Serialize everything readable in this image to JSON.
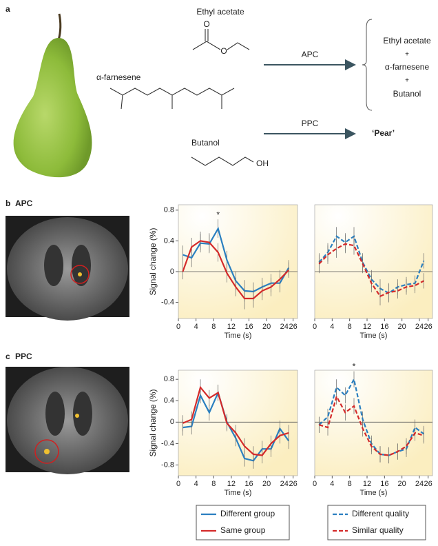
{
  "panel_a": {
    "label": "a",
    "molecules": [
      {
        "name": "Ethyl acetate",
        "atoms": [
          "O",
          "O"
        ]
      },
      {
        "name": "α-farnesene"
      },
      {
        "name": "Butanol",
        "atoms": [
          "OH"
        ]
      }
    ],
    "arrows": [
      "APC",
      "PPC"
    ],
    "mixture": [
      "Ethyl acetate",
      "+",
      "α-farnesene",
      "+",
      "Butanol"
    ],
    "percept": "‘Pear’"
  },
  "panel_b": {
    "label": "b",
    "region": "APC"
  },
  "panel_c": {
    "label": "c",
    "region": "PPC"
  },
  "chart_data": [
    {
      "type": "line",
      "xlabel": "Time (s)",
      "ylabel": "Signal change (%)",
      "xlim": [
        0,
        27
      ],
      "xticks": [
        0,
        4,
        8,
        12,
        16,
        20,
        24,
        26
      ],
      "ylim": [
        -0.61,
        0.87
      ],
      "yticks": [
        -0.4,
        0,
        0.4,
        0.8
      ],
      "x": [
        1,
        3,
        5,
        7,
        9,
        11,
        13,
        15,
        17,
        19,
        21,
        23,
        25
      ],
      "series": [
        {
          "color": "#2a7fc0",
          "line_style": "solid",
          "values": [
            0.22,
            0.18,
            0.37,
            0.36,
            0.56,
            0.15,
            -0.12,
            -0.25,
            -0.26,
            -0.2,
            -0.15,
            -0.15,
            0.05
          ],
          "errors": [
            0.12,
            0.12,
            0.12,
            0.12,
            0.12,
            0.12,
            0.12,
            0.14,
            0.12,
            0.12,
            0.12,
            0.12,
            0.1
          ]
        },
        {
          "color": "#d42a2a",
          "line_style": "solid",
          "values": [
            0.0,
            0.32,
            0.4,
            0.38,
            0.25,
            -0.02,
            -0.2,
            -0.35,
            -0.35,
            -0.25,
            -0.2,
            -0.1,
            0.02
          ],
          "errors": [
            0.1,
            0.12,
            0.12,
            0.12,
            0.12,
            0.12,
            0.12,
            0.14,
            0.12,
            0.12,
            0.12,
            0.12,
            0.1
          ]
        }
      ],
      "annotation": {
        "text": "*",
        "x": 9
      }
    },
    {
      "type": "line",
      "xlabel": "Time (s)",
      "xlim": [
        0,
        27
      ],
      "xticks": [
        0,
        4,
        8,
        12,
        16,
        20,
        24,
        26
      ],
      "ylim": [
        -0.61,
        0.87
      ],
      "x": [
        1,
        3,
        5,
        7,
        9,
        11,
        13,
        15,
        17,
        19,
        21,
        23,
        25
      ],
      "series": [
        {
          "color": "#2a7fc0",
          "line_style": "dashed",
          "values": [
            0.12,
            0.25,
            0.46,
            0.38,
            0.46,
            0.12,
            -0.1,
            -0.22,
            -0.28,
            -0.2,
            -0.17,
            -0.15,
            0.14
          ],
          "errors": [
            0.12,
            0.12,
            0.12,
            0.12,
            0.12,
            0.12,
            0.12,
            0.12,
            0.12,
            0.1,
            0.1,
            0.1,
            0.1
          ]
        },
        {
          "color": "#d42a2a",
          "line_style": "dashed",
          "values": [
            0.1,
            0.22,
            0.3,
            0.36,
            0.34,
            0.1,
            -0.15,
            -0.32,
            -0.27,
            -0.25,
            -0.2,
            -0.18,
            -0.12
          ],
          "errors": [
            0.12,
            0.12,
            0.12,
            0.12,
            0.12,
            0.12,
            0.12,
            0.12,
            0.12,
            0.1,
            0.1,
            0.1,
            0.1
          ]
        }
      ]
    },
    {
      "type": "line",
      "xlabel": "Time (s)",
      "ylabel": "Signal change (%)",
      "xlim": [
        0,
        27
      ],
      "xticks": [
        0,
        4,
        8,
        12,
        16,
        20,
        24,
        26
      ],
      "ylim": [
        -1,
        0.97
      ],
      "yticks": [
        -0.8,
        -0.4,
        0,
        0.4,
        0.8
      ],
      "x": [
        1,
        3,
        5,
        7,
        9,
        11,
        13,
        15,
        17,
        19,
        21,
        23,
        25
      ],
      "series": [
        {
          "name": "Different group",
          "color": "#2a7fc0",
          "line_style": "solid",
          "values": [
            -0.1,
            -0.08,
            0.5,
            0.18,
            0.55,
            0.0,
            -0.3,
            -0.68,
            -0.72,
            -0.5,
            -0.5,
            -0.12,
            -0.35
          ],
          "errors": [
            0.15,
            0.15,
            0.15,
            0.15,
            0.15,
            0.15,
            0.15,
            0.15,
            0.15,
            0.15,
            0.15,
            0.15,
            0.15
          ]
        },
        {
          "name": "Same group",
          "color": "#d42a2a",
          "line_style": "solid",
          "values": [
            -0.02,
            0.05,
            0.65,
            0.45,
            0.55,
            -0.02,
            -0.2,
            -0.45,
            -0.6,
            -0.62,
            -0.4,
            -0.25,
            -0.2
          ],
          "errors": [
            0.15,
            0.15,
            0.15,
            0.15,
            0.15,
            0.15,
            0.15,
            0.15,
            0.15,
            0.15,
            0.15,
            0.15,
            0.15
          ]
        }
      ]
    },
    {
      "type": "line",
      "xlabel": "Time (s)",
      "xlim": [
        0,
        27
      ],
      "xticks": [
        0,
        4,
        8,
        12,
        16,
        20,
        24,
        26
      ],
      "ylim": [
        -1,
        0.97
      ],
      "x": [
        1,
        3,
        5,
        7,
        9,
        11,
        13,
        15,
        17,
        19,
        21,
        23,
        25
      ],
      "series": [
        {
          "name": "Different quality",
          "color": "#2a7fc0",
          "line_style": "dashed",
          "values": [
            -0.05,
            0.1,
            0.65,
            0.5,
            0.8,
            0.05,
            -0.4,
            -0.6,
            -0.62,
            -0.55,
            -0.5,
            -0.1,
            -0.22
          ],
          "errors": [
            0.15,
            0.15,
            0.15,
            0.15,
            0.15,
            0.15,
            0.15,
            0.15,
            0.15,
            0.15,
            0.15,
            0.15,
            0.15
          ]
        },
        {
          "name": "Similar quality",
          "color": "#d42a2a",
          "line_style": "dashed",
          "values": [
            -0.05,
            -0.1,
            0.48,
            0.18,
            0.3,
            -0.12,
            -0.45,
            -0.6,
            -0.62,
            -0.55,
            -0.45,
            -0.2,
            -0.25
          ],
          "errors": [
            0.15,
            0.15,
            0.15,
            0.15,
            0.15,
            0.15,
            0.15,
            0.15,
            0.15,
            0.15,
            0.15,
            0.15,
            0.15
          ]
        }
      ],
      "annotation": {
        "text": "*",
        "x": 9
      }
    }
  ]
}
